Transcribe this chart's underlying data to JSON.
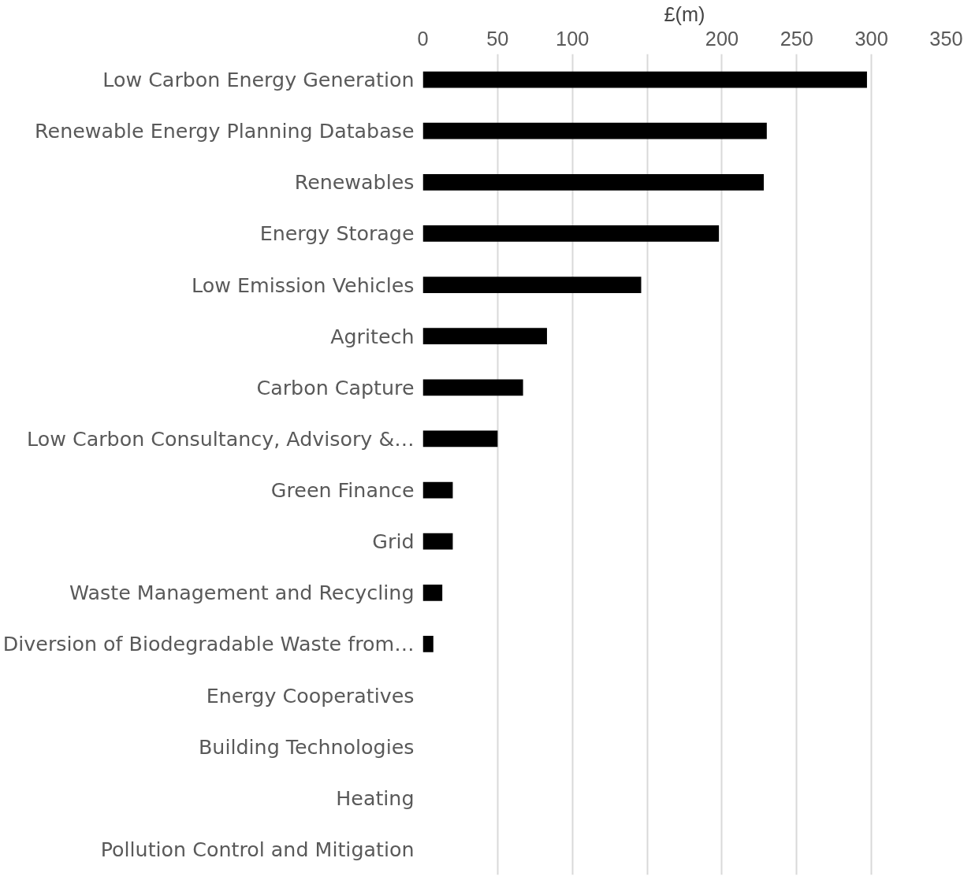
{
  "chart_data": {
    "type": "bar",
    "orientation": "horizontal",
    "xlabel": "£(m)",
    "categories": [
      "Low Carbon Energy Generation",
      "Renewable Energy Planning Database",
      "Renewables",
      "Energy Storage",
      "Low Emission Vehicles",
      "Agritech",
      "Carbon Capture",
      "Low Carbon Consultancy, Advisory &…",
      "Green Finance",
      "Grid",
      "Waste Management and Recycling",
      "Diversion of Biodegradable Waste from…",
      "Energy Cooperatives",
      "Building Technologies",
      "Heating",
      "Pollution Control and Mitigation"
    ],
    "values": [
      297,
      230,
      228,
      198,
      146,
      83,
      67,
      50,
      20,
      20,
      13,
      7,
      0,
      0,
      0,
      0
    ],
    "color": "#000000",
    "xlim": [
      0,
      350
    ],
    "xticks": [
      0,
      50,
      100,
      {
        "value": 150,
        "label": null
      },
      200,
      250,
      300,
      350
    ],
    "grid": "x"
  }
}
